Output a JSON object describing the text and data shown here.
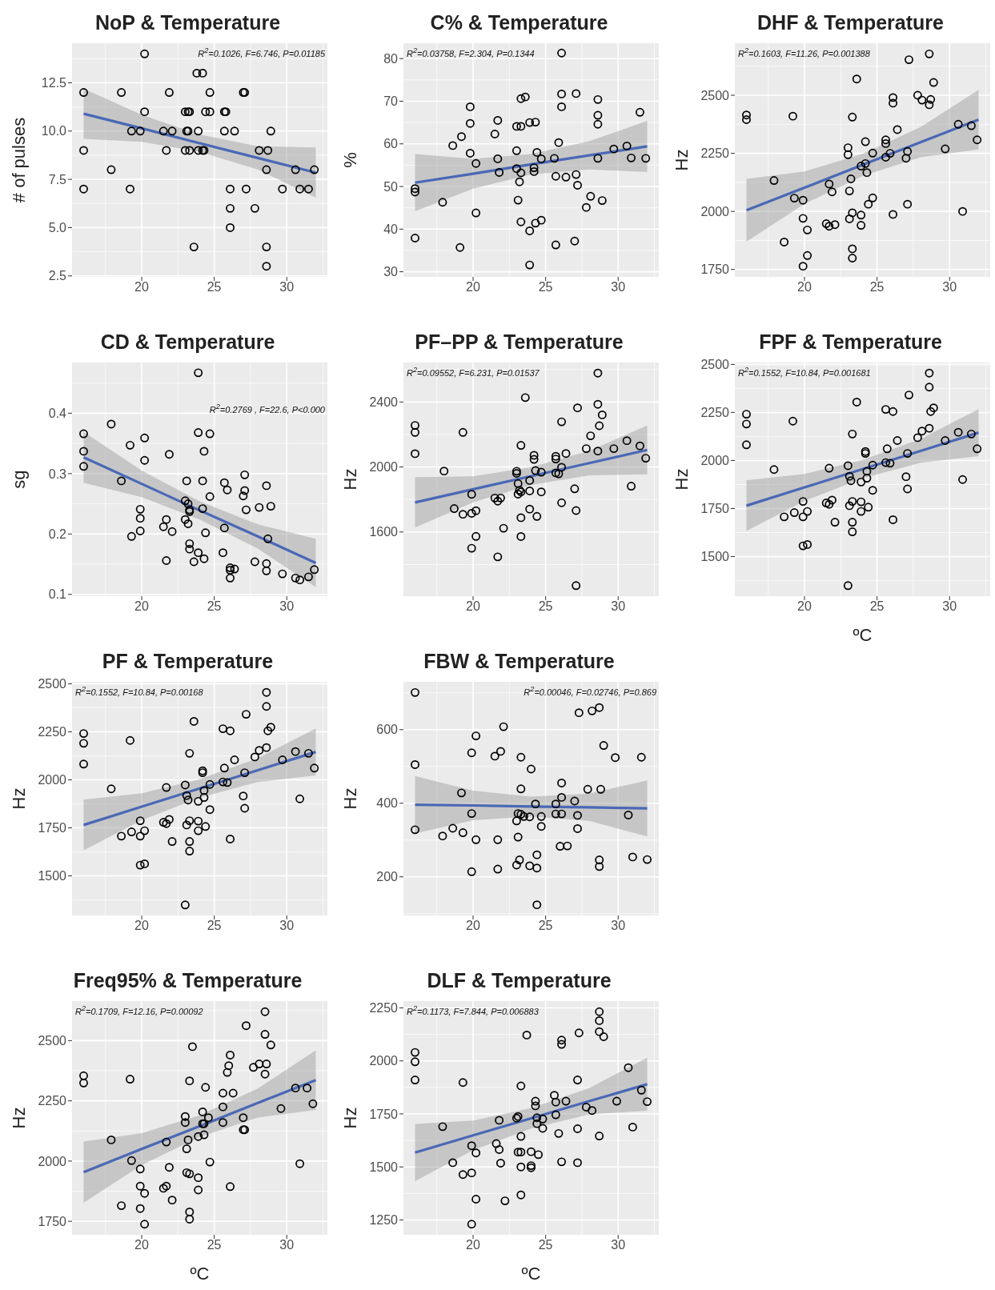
{
  "chart_data": [
    {
      "type": "scatter",
      "title": "NoP & Temperature",
      "ylabel": "# of pulses",
      "annotations": [
        "R$^{2}$=0.1026, F=6.746, P=0.01185"
      ],
      "xlim": [
        15.2,
        32.8
      ],
      "xticks": [
        20,
        25,
        30
      ],
      "ylim": [
        2.45,
        14.55
      ],
      "yticks": [
        2.5,
        {
          "value": 5,
          "label": "5.0"
        },
        7.5,
        {
          "value": 10,
          "label": "10.0"
        },
        12.5
      ],
      "grid": true,
      "marker": "circle",
      "series": [
        {
          "type": "scatter",
          "color": "#000000",
          "x": [
            16,
            16,
            16,
            17.9,
            18.6,
            19.2,
            19.3,
            19.9,
            20.2,
            20.2,
            21.5,
            21.7,
            21.9,
            22.1,
            23,
            23,
            23.1,
            23.2,
            23.2,
            23.3,
            23.3,
            23.6,
            23.8,
            23.9,
            23.9,
            24.2,
            24.2,
            24.3,
            24.4,
            24.7,
            24.7,
            25.7,
            25.7,
            25.8,
            26.1,
            26.1,
            26.1,
            26.4,
            27,
            27.1,
            27.2,
            27.8,
            28.1,
            28.6,
            28.6,
            28.6,
            28.7,
            28.9,
            29.7,
            30.6,
            30.9,
            31.5,
            31.9
          ],
          "values": [
            12,
            9,
            7,
            8,
            12,
            7,
            10,
            10,
            14,
            11,
            10,
            9,
            12,
            10,
            11,
            9,
            10,
            11,
            10,
            11,
            9,
            4,
            13,
            10,
            9,
            13,
            9,
            9,
            11,
            12,
            11,
            11,
            10,
            11,
            7,
            6,
            5,
            10,
            12,
            12,
            7,
            6,
            9,
            8,
            4,
            3,
            9,
            10,
            7,
            8,
            7,
            7,
            8
          ]
        },
        {
          "type": "line",
          "marker": "none",
          "color": "#4a68b6",
          "x": [
            16,
            20,
            24,
            28,
            32
          ],
          "values": [
            10.9,
            10.14,
            9.37,
            8.61,
            7.85
          ],
          "lower": [
            9.6,
            9.44,
            8.92,
            8.01,
            6.55
          ],
          "upper": [
            12.2,
            10.84,
            9.82,
            9.21,
            9.15
          ]
        }
      ]
    },
    {
      "type": "scatter",
      "title": "C% & Temperature",
      "ylabel": "%",
      "annotations": [
        "R$^{2}$=0.03758, F=2.304, P=0.1344"
      ],
      "xlim": [
        15.2,
        32.8
      ],
      "xticks": [
        20,
        25,
        30
      ],
      "ylim": [
        28.8,
        83.6
      ],
      "yticks": [
        30,
        40,
        50,
        60,
        70,
        80
      ],
      "grid": true,
      "marker": "circle",
      "series": [
        {
          "type": "scatter",
          "color": "#000000",
          "x": [
            16,
            16,
            16,
            17.9,
            18.6,
            19.1,
            19.2,
            19.8,
            19.8,
            19.8,
            20.2,
            20.2,
            21.5,
            21.7,
            21.7,
            21.8,
            23,
            23,
            23.2,
            23.1,
            23.3,
            23.6,
            23,
            23.3,
            23.3,
            23.3,
            23.9,
            24.3,
            23.9,
            23.9,
            24.2,
            24.2,
            24.3,
            24.7,
            24.4,
            24.7,
            25.6,
            25.7,
            25.7,
            25.9,
            26.1,
            26.1,
            26.1,
            26.4,
            27,
            27.1,
            27.1,
            27.2,
            27.8,
            28.1,
            28.6,
            28.6,
            28.6,
            28.6,
            28.9,
            29.7,
            30.6,
            30.9,
            31.5,
            31.9
          ],
          "values": [
            49.5,
            48.7,
            37.9,
            46.3,
            59.6,
            35.7,
            61.7,
            68.7,
            64.8,
            57.8,
            55.4,
            43.8,
            62.3,
            65.5,
            56.5,
            53.3,
            58.4,
            54.2,
            51.1,
            46.8,
            70.6,
            71,
            64.1,
            64.1,
            53.2,
            41.7,
            65,
            65.1,
            39.6,
            31.6,
            54.4,
            53.5,
            41.4,
            42.1,
            58,
            56.5,
            56.6,
            52.4,
            36.3,
            60.3,
            81.3,
            71.7,
            68.7,
            52.2,
            37.2,
            71.8,
            52.8,
            50.3,
            45.1,
            47.7,
            70.4,
            66.7,
            64.6,
            56.6,
            46.7,
            58.8,
            59.5,
            56.7,
            67.4,
            56.6
          ]
        },
        {
          "type": "line",
          "marker": "none",
          "color": "#4a68b6",
          "x": [
            16,
            20,
            24,
            28,
            32
          ],
          "values": [
            50.9,
            53,
            55.2,
            57.3,
            59.4
          ],
          "lower": [
            44.2,
            49.5,
            52.8,
            54,
            53.4
          ],
          "upper": [
            57.6,
            56.5,
            57.6,
            60.6,
            65.4
          ]
        }
      ]
    },
    {
      "type": "scatter",
      "title": "DHF & Temperature",
      "ylabel": "Hz",
      "annotations": [
        "R$^{2}$=0.1603, F=11.26, P=0.001388"
      ],
      "xlim": [
        15.2,
        32.8
      ],
      "xticks": [
        20,
        25,
        30
      ],
      "ylim": [
        1718,
        2724
      ],
      "yticks": [
        1750,
        2000,
        2250,
        2500
      ],
      "grid": true,
      "marker": "circle",
      "series": [
        {
          "type": "scatter",
          "color": "#000000",
          "x": [
            16,
            16,
            17.9,
            19.2,
            19.3,
            19.9,
            19.9,
            19.9,
            20.2,
            20.2,
            18.6,
            21.5,
            21.7,
            21.7,
            21.9,
            22.1,
            23,
            23,
            23.1,
            23.1,
            23.2,
            23.3,
            23.3,
            23.3,
            23.6,
            23.3,
            23.9,
            23.9,
            23.9,
            24.2,
            24.2,
            24.3,
            24.4,
            24.7,
            24.7,
            25.6,
            25.6,
            25.6,
            25.9,
            26.1,
            26.1,
            26.1,
            26.4,
            27.1,
            27,
            27.1,
            27.2,
            27.8,
            28.1,
            28.6,
            28.6,
            28.7,
            28.9,
            29.7,
            30.6,
            30.9,
            31.5,
            31.9
          ],
          "values": [
            2415,
            2395,
            2133,
            2410,
            2057,
            2048,
            1970,
            1764,
            1920,
            1810,
            1868,
            1947,
            2118,
            1936,
            2084,
            1943,
            2274,
            2244,
            2088,
            1968,
            2140,
            1994,
            1839,
            1799,
            2570,
            2406,
            2195,
            1984,
            1940,
            2300,
            2206,
            2167,
            2031,
            2251,
            2058,
            2308,
            2292,
            2233,
            2250,
            2490,
            2466,
            1987,
            2352,
            2258,
            2229,
            2031,
            2653,
            2500,
            2479,
            2678,
            2459,
            2482,
            2555,
            2269,
            2375,
            2000,
            2369,
            2308
          ]
        },
        {
          "type": "line",
          "marker": "none",
          "color": "#4a68b6",
          "x": [
            16,
            20,
            24,
            28,
            32
          ],
          "values": [
            2005,
            2102,
            2200,
            2298,
            2395
          ],
          "lower": [
            1870,
            2032,
            2152,
            2233,
            2267
          ],
          "upper": [
            2140,
            2172,
            2248,
            2363,
            2523
          ]
        }
      ]
    },
    {
      "type": "scatter",
      "title": "CD & Temperature",
      "ylabel": "sg",
      "annotations": [
        "R$^{2}$=0.2769 , F=22.6, P<0.000"
      ],
      "xlim": [
        15.2,
        32.8
      ],
      "xticks": [
        20,
        25,
        30
      ],
      "ylim": [
        0.097,
        0.484
      ],
      "yticks": [
        0.1,
        0.2,
        0.3,
        0.4
      ],
      "grid": true,
      "marker": "circle",
      "series": [
        {
          "type": "scatter",
          "color": "#000000",
          "x": [
            16,
            16,
            16,
            17.9,
            18.6,
            19.2,
            19.3,
            19.9,
            19.9,
            19.9,
            20.2,
            20.2,
            21.5,
            21.7,
            21.7,
            21.9,
            22.1,
            23,
            23.1,
            23,
            23.2,
            23.2,
            23.3,
            23.3,
            23.3,
            23.3,
            23.6,
            23.9,
            23.9,
            23.9,
            24.2,
            24.3,
            24.2,
            24.3,
            24.4,
            24.7,
            24.7,
            25.6,
            25.7,
            25.7,
            25.9,
            26.1,
            26.1,
            26.1,
            26.4,
            27,
            27.1,
            27.1,
            27.2,
            27.8,
            28.1,
            28.6,
            28.6,
            28.6,
            28.7,
            28.9,
            29.7,
            30.6,
            30.9,
            31.5,
            31.9
          ],
          "values": [
            0.366,
            0.337,
            0.312,
            0.382,
            0.288,
            0.347,
            0.196,
            0.241,
            0.226,
            0.205,
            0.359,
            0.322,
            0.212,
            0.224,
            0.156,
            0.332,
            0.204,
            0.255,
            0.288,
            0.224,
            0.217,
            0.25,
            0.24,
            0.237,
            0.184,
            0.175,
            0.154,
            0.467,
            0.368,
            0.169,
            0.288,
            0.337,
            0.242,
            0.159,
            0.202,
            0.366,
            0.262,
            0.169,
            0.285,
            0.21,
            0.273,
            0.144,
            0.14,
            0.127,
            0.142,
            0.263,
            0.272,
            0.298,
            0.24,
            0.154,
            0.244,
            0.28,
            0.151,
            0.139,
            0.192,
            0.246,
            0.134,
            0.127,
            0.124,
            0.129,
            0.141
          ]
        },
        {
          "type": "line",
          "marker": "none",
          "color": "#4a68b6",
          "x": [
            16,
            20,
            24,
            28,
            32
          ],
          "values": [
            0.327,
            0.283,
            0.239,
            0.196,
            0.152
          ],
          "lower": [
            0.285,
            0.261,
            0.224,
            0.176,
            0.112
          ],
          "upper": [
            0.369,
            0.305,
            0.254,
            0.216,
            0.192
          ]
        }
      ]
    },
    {
      "type": "scatter",
      "title": "PF–PP & Temperature",
      "ylabel": "Hz",
      "annotations": [
        "R$^{2}$=0.09552, F=6.231, P=0.01537"
      ],
      "xlim": [
        15.2,
        32.8
      ],
      "xticks": [
        20,
        25,
        30
      ],
      "ylim": [
        1205,
        2643
      ],
      "yticks": [
        1600,
        2000,
        2400
      ],
      "grid": true,
      "marker": "circle",
      "series": [
        {
          "type": "scatter",
          "color": "#000000",
          "x": [
            16,
            16,
            16,
            18,
            18.7,
            19.3,
            19.3,
            19.9,
            19.9,
            19.9,
            20.2,
            20.2,
            21.5,
            21.7,
            21.9,
            22.1,
            21.7,
            23,
            23,
            23.1,
            23.1,
            23.3,
            23.2,
            23.3,
            23.3,
            23.3,
            23.6,
            23.9,
            23.9,
            23.9,
            24.2,
            24.2,
            24.3,
            24.4,
            24.7,
            24.7,
            25.7,
            25.7,
            25.7,
            25.9,
            26.1,
            26.1,
            26.1,
            26.4,
            27,
            27.1,
            27.2,
            27.1,
            27.8,
            28.1,
            28.6,
            28.6,
            28.6,
            28.7,
            28.9,
            29.7,
            30.6,
            30.9,
            31.5,
            31.9
          ],
          "values": [
            2256,
            2213,
            2082,
            1975,
            1744,
            2213,
            1709,
            1832,
            1715,
            1500,
            1731,
            1573,
            1809,
            1790,
            1809,
            1623,
            1447,
            1974,
            1961,
            1898,
            1833,
            1847,
            1857,
            2133,
            1688,
            1572,
            2427,
            1917,
            1853,
            1741,
            2072,
            2047,
            1978,
            1696,
            1847,
            1968,
            2066,
            2049,
            1964,
            1958,
            1998,
            2278,
            1780,
            2083,
            1866,
            1732,
            2364,
            1270,
            2113,
            2192,
            2578,
            2386,
            2098,
            2254,
            2321,
            2113,
            2162,
            1882,
            2130,
            2054
          ]
        },
        {
          "type": "line",
          "marker": "none",
          "color": "#4a68b6",
          "x": [
            16,
            20,
            24,
            28,
            32
          ],
          "values": [
            1782,
            1863,
            1944,
            2024,
            2105
          ],
          "lower": [
            1627,
            1783,
            1889,
            1949,
            1955
          ],
          "upper": [
            1937,
            1943,
            1999,
            2099,
            2255
          ]
        }
      ]
    },
    {
      "type": "scatter",
      "title": "FPF & Temperature",
      "xlabel": "ºC",
      "ylabel": "Hz",
      "annotations": [
        "R$^{2}$=0.1552, F=10.84, P=0.001681"
      ],
      "xlim": [
        15.2,
        32.8
      ],
      "xticks": [
        20,
        25,
        30
      ],
      "ylim": [
        1294,
        2510
      ],
      "yticks": [
        1500,
        1750,
        2000,
        2250,
        2500
      ],
      "grid": true,
      "marker": "circle",
      "series": [
        {
          "type": "scatter",
          "color": "#000000",
          "x": [
            16,
            16,
            16,
            17.9,
            18.6,
            19.2,
            19.3,
            19.9,
            19.9,
            19.9,
            20.2,
            20.2,
            21.5,
            21.7,
            21.7,
            21.9,
            22.1,
            23,
            23,
            23.1,
            23.1,
            23.2,
            23.3,
            23.3,
            23.3,
            23.3,
            23.6,
            23.9,
            23.9,
            23.9,
            24.2,
            24.2,
            24.3,
            24.3,
            24.4,
            24.7,
            24.7,
            25.6,
            25.7,
            25.6,
            25.9,
            26.1,
            26.1,
            26.4,
            27,
            27.1,
            27.1,
            27.2,
            27.8,
            28.1,
            28.6,
            28.6,
            28.6,
            28.7,
            28.9,
            29.7,
            30.6,
            30.9,
            31.5,
            31.9
          ],
          "values": [
            2241,
            2190,
            2082,
            1953,
            1707,
            2205,
            1729,
            1787,
            1707,
            1556,
            1735,
            1563,
            1779,
            1960,
            1772,
            1794,
            1679,
            1973,
            1349,
            1918,
            1765,
            1895,
            2138,
            1787,
            1679,
            1629,
            2304,
            1888,
            1785,
            1735,
            2047,
            2037,
            1944,
            1908,
            1757,
            1976,
            1845,
            2266,
            2061,
            1989,
            1986,
            2255,
            1692,
            2104,
            1916,
            2037,
            1852,
            2341,
            2119,
            2153,
            2455,
            2382,
            2168,
            2255,
            2274,
            2104,
            2147,
            1901,
            2138,
            2061
          ]
        },
        {
          "type": "line",
          "marker": "none",
          "color": "#4a68b6",
          "x": [
            16,
            20,
            24,
            28,
            32
          ],
          "values": [
            1765,
            1860,
            1955,
            2050,
            2145
          ],
          "lower": [
            1633,
            1790,
            1907,
            1988,
            2023
          ],
          "upper": [
            1897,
            1930,
            2003,
            2112,
            2267
          ]
        }
      ]
    },
    {
      "type": "scatter",
      "title": "PF & Temperature",
      "ylabel": "Hz",
      "annotations": [
        "R$^{2}$=0.1552, F=10.84, P=0.00168"
      ],
      "xlim": [
        15.2,
        32.8
      ],
      "xticks": [
        20,
        25,
        30
      ],
      "ylim": [
        1294,
        2510
      ],
      "yticks": [
        1500,
        1750,
        2000,
        2250,
        2500
      ],
      "grid": true,
      "marker": "circle",
      "series": [
        {
          "type": "scatter",
          "color": "#000000",
          "x": [
            16,
            16,
            16,
            17.9,
            18.6,
            19.2,
            19.3,
            19.9,
            19.9,
            19.9,
            20.2,
            20.2,
            21.5,
            21.7,
            21.7,
            21.9,
            22.1,
            23,
            23,
            23.1,
            23.1,
            23.2,
            23.3,
            23.3,
            23.3,
            23.3,
            23.6,
            23.9,
            23.9,
            23.9,
            24.2,
            24.2,
            24.3,
            24.3,
            24.4,
            24.7,
            24.7,
            25.6,
            25.7,
            25.6,
            25.9,
            26.1,
            26.1,
            26.4,
            27,
            27.1,
            27.1,
            27.2,
            27.8,
            28.1,
            28.6,
            28.6,
            28.6,
            28.7,
            28.9,
            29.7,
            30.6,
            30.9,
            31.5,
            31.9
          ],
          "values": [
            2241,
            2190,
            2082,
            1953,
            1707,
            2205,
            1729,
            1787,
            1707,
            1556,
            1735,
            1563,
            1779,
            1960,
            1772,
            1794,
            1679,
            1973,
            1349,
            1918,
            1765,
            1895,
            2138,
            1787,
            1679,
            1629,
            2304,
            1888,
            1785,
            1735,
            2047,
            2037,
            1944,
            1908,
            1757,
            1976,
            1845,
            2266,
            2061,
            1989,
            1986,
            2255,
            1692,
            2104,
            1916,
            2037,
            1852,
            2341,
            2119,
            2153,
            2455,
            2382,
            2168,
            2255,
            2274,
            2104,
            2147,
            1901,
            2138,
            2061
          ]
        },
        {
          "type": "line",
          "marker": "none",
          "color": "#4a68b6",
          "x": [
            16,
            20,
            24,
            28,
            32
          ],
          "values": [
            1765,
            1860,
            1955,
            2050,
            2145
          ],
          "lower": [
            1633,
            1790,
            1907,
            1988,
            2023
          ],
          "upper": [
            1897,
            1930,
            2003,
            2112,
            2267
          ]
        }
      ]
    },
    {
      "type": "scatter",
      "title": "FBW & Temperature",
      "ylabel": "Hz",
      "annotations": [
        "R$^{2}$=0.00046, F=0.02746, P=0.869"
      ],
      "xlim": [
        15.2,
        32.8
      ],
      "xticks": [
        20,
        25,
        30
      ],
      "ylim": [
        95,
        730
      ],
      "yticks": [
        200,
        400,
        600
      ],
      "grid": true,
      "marker": "circle",
      "series": [
        {
          "type": "scatter",
          "color": "#000000",
          "x": [
            16,
            16,
            16,
            17.9,
            18.6,
            19.2,
            19.3,
            19.9,
            19.9,
            19.9,
            20.2,
            20.2,
            21.5,
            21.7,
            21.7,
            21.9,
            22.1,
            23,
            23.1,
            23,
            23.1,
            23.2,
            23.3,
            23.3,
            23.3,
            23.5,
            23.9,
            23.9,
            24,
            24.3,
            24.4,
            24.4,
            24.4,
            24.7,
            24.7,
            25.7,
            25.7,
            26.1,
            26.1,
            26.1,
            26,
            26.5,
            27,
            27.2,
            27.2,
            27.3,
            27.9,
            28.2,
            28.7,
            28.7,
            28.7,
            28.8,
            29,
            29.8,
            30.7,
            31,
            31.6,
            32
          ],
          "values": [
            701,
            505,
            328,
            311,
            332,
            428,
            320,
            537,
            372,
            214,
            583,
            301,
            528,
            221,
            301,
            541,
            608,
            232,
            308,
            352,
            372,
            246,
            525,
            439,
            370,
            364,
            363,
            230,
            493,
            398,
            224,
            260,
            124,
            364,
            337,
            371,
            398,
            455,
            416,
            371,
            283,
            284,
            406,
            367,
            331,
            646,
            438,
            651,
            660,
            246,
            228,
            438,
            557,
            524,
            368,
            254,
            525,
            247
          ]
        },
        {
          "type": "line",
          "marker": "none",
          "color": "#4a68b6",
          "x": [
            16,
            20,
            24,
            28,
            32
          ],
          "values": [
            396,
            394,
            391,
            389,
            386
          ],
          "lower": [
            318,
            354,
            364,
            352,
            310
          ],
          "upper": [
            474,
            434,
            418,
            426,
            462
          ]
        }
      ]
    },
    {
      "type": "scatter",
      "title": "Freq95% & Temperature",
      "xlabel": "ºC",
      "ylabel": "Hz",
      "annotations": [
        "R$^{2}$=0.1709, F=12.16, P=0.00092"
      ],
      "xlim": [
        15.2,
        32.8
      ],
      "xticks": [
        20,
        25,
        30
      ],
      "ylim": [
        1694,
        2664
      ],
      "yticks": [
        1750,
        2000,
        2250,
        2500
      ],
      "grid": true,
      "marker": "circle",
      "series": [
        {
          "type": "scatter",
          "color": "#000000",
          "x": [
            16,
            16,
            17.9,
            18.6,
            19.2,
            19.3,
            19.9,
            19.9,
            19.9,
            20.2,
            20.2,
            21.5,
            21.7,
            21.7,
            21.9,
            22.1,
            23,
            23,
            23.1,
            23.1,
            23.2,
            23.3,
            23.3,
            23.3,
            23.3,
            23.5,
            23.9,
            23.9,
            23.9,
            24.2,
            24.2,
            24.3,
            24.3,
            24.4,
            24.6,
            24.7,
            25.6,
            25.6,
            25.6,
            25.9,
            26,
            26.1,
            26.1,
            26.3,
            27,
            27,
            27.1,
            27.2,
            27.7,
            28.1,
            28.5,
            28.5,
            28.6,
            28.5,
            28.9,
            29.6,
            30.6,
            30.9,
            31.4,
            31.8
          ],
          "values": [
            2354,
            2324,
            2088,
            1815,
            2340,
            2002,
            1967,
            1896,
            1803,
            1866,
            1738,
            1887,
            1896,
            2079,
            1974,
            1838,
            2185,
            2160,
            2051,
            1952,
            2088,
            2333,
            1947,
            1789,
            1759,
            2475,
            2102,
            1931,
            1880,
            2204,
            2155,
            2155,
            2109,
            2306,
            2180,
            1996,
            2160,
            2225,
            2282,
            2368,
            2396,
            2440,
            1894,
            2282,
            2180,
            2130,
            2130,
            2562,
            2389,
            2403,
            2620,
            2526,
            2403,
            2361,
            2482,
            2218,
            2303,
            1989,
            2303,
            2238
          ]
        },
        {
          "type": "line",
          "marker": "none",
          "color": "#4a68b6",
          "x": [
            16,
            20,
            24,
            28,
            32
          ],
          "values": [
            1954,
            2050,
            2145,
            2241,
            2336
          ],
          "lower": [
            1827,
            1984,
            2100,
            2181,
            2212
          ],
          "upper": [
            2081,
            2116,
            2190,
            2301,
            2460
          ]
        }
      ]
    },
    {
      "type": "scatter",
      "title": "DLF & Temperature",
      "xlabel": "ºC",
      "ylabel": "Hz",
      "annotations": [
        "R$^{2}$=0.1173, F=7.844, P=0.006883"
      ],
      "xlim": [
        15.2,
        32.8
      ],
      "xticks": [
        20,
        25,
        30
      ],
      "ylim": [
        1180,
        2282
      ],
      "yticks": [
        1250,
        1500,
        1750,
        2000,
        2250
      ],
      "grid": true,
      "marker": "circle",
      "series": [
        {
          "type": "scatter",
          "color": "#000000",
          "x": [
            16,
            16,
            16,
            17.9,
            18.6,
            19.3,
            19.3,
            19.9,
            19.9,
            19.9,
            20.2,
            20.2,
            21.6,
            21.8,
            21.8,
            21.9,
            22.2,
            23,
            23.1,
            23.1,
            23.3,
            23.3,
            23.3,
            23.3,
            23.3,
            23.7,
            24,
            24,
            24,
            24.3,
            24.3,
            24.4,
            24.4,
            24.5,
            24.8,
            24.8,
            25.6,
            25.7,
            25.7,
            25.9,
            26.1,
            26.1,
            26.1,
            26.4,
            27.2,
            27.2,
            27.2,
            27.3,
            27.8,
            28.2,
            28.7,
            28.7,
            28.7,
            29,
            28.7,
            29.9,
            30.7,
            31,
            31.6,
            32
          ],
          "values": [
            2040,
            1996,
            1910,
            1690,
            1520,
            1898,
            1464,
            1600,
            1472,
            1230,
            1566,
            1348,
            1610,
            1720,
            1582,
            1518,
            1340,
            1730,
            1738,
            1570,
            1882,
            1644,
            1570,
            1500,
            1368,
            2122,
            1572,
            1506,
            1496,
            1810,
            1788,
            1732,
            1704,
            1558,
            1682,
            1726,
            1838,
            1806,
            1746,
            1658,
            2098,
            2078,
            1524,
            1810,
            1680,
            1910,
            1520,
            2132,
            1782,
            1766,
            2232,
            2190,
            2138,
            2114,
            1646,
            1810,
            1968,
            1688,
            1862,
            1808
          ]
        },
        {
          "type": "line",
          "marker": "none",
          "color": "#4a68b6",
          "x": [
            16,
            20,
            24,
            28,
            32
          ],
          "values": [
            1568,
            1649,
            1729,
            1810,
            1890
          ],
          "lower": [
            1433,
            1579,
            1681,
            1748,
            1765
          ],
          "upper": [
            1703,
            1719,
            1777,
            1872,
            2015
          ]
        }
      ]
    }
  ]
}
